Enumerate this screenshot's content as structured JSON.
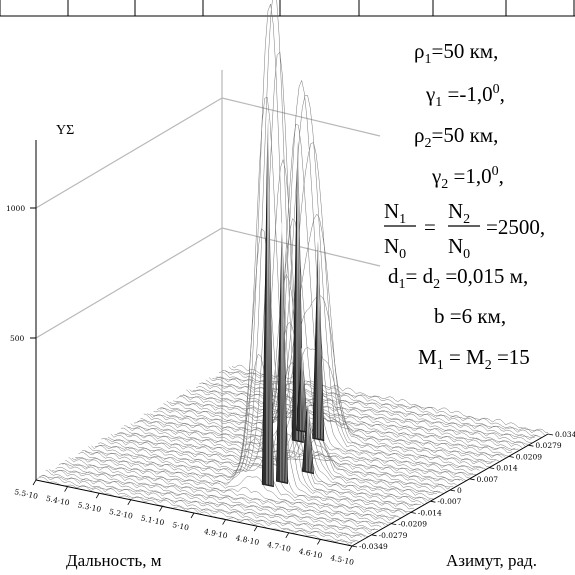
{
  "chart_data": {
    "type": "surface3d",
    "zlabel": "YΣ",
    "xlabel": "Дальность, м",
    "ylabel": "Азимут, рад.",
    "z_ticks": [
      "1000",
      "500"
    ],
    "zlim": [
      0,
      1400
    ],
    "x_ticks": [
      "5.5·10",
      "5.4·10",
      "5.3·10",
      "5.2·10",
      "5.1·10",
      "5·10",
      "4.9·10",
      "4.8·10",
      "4.7·10",
      "4.6·10",
      "4.5·10"
    ],
    "y_ticks": [
      "0.0349",
      "0.0279",
      "0.0209",
      "0.014",
      "0.007",
      "0",
      "-0.007",
      "-0.014",
      "-0.0209",
      "-0.0279",
      "-0.0349"
    ],
    "peaks": [
      {
        "x_index": 4.5,
        "y_index": 6.1,
        "z": 1150
      },
      {
        "x_index": 4.9,
        "y_index": 6.5,
        "z": 760
      },
      {
        "x_index": 4.2,
        "y_index": 6.8,
        "z": 320
      },
      {
        "x_index": 5.6,
        "y_index": 2.8,
        "z": 1410
      },
      {
        "x_index": 5.8,
        "y_index": 3.2,
        "z": 1000
      },
      {
        "x_index": 6.0,
        "y_index": 4.2,
        "z": 270
      }
    ],
    "annotation_lines": [
      "ρ₁=50 км,",
      "γ₁=-1,0⁰,",
      "ρ₂=50 км,",
      "γ₂=1,0⁰,",
      "N₁/N₀ = N₂/N₀ =2500,",
      "d₁=d₂=0,015 м,",
      "b =6 км,",
      "M₁=M₂=15"
    ]
  }
}
